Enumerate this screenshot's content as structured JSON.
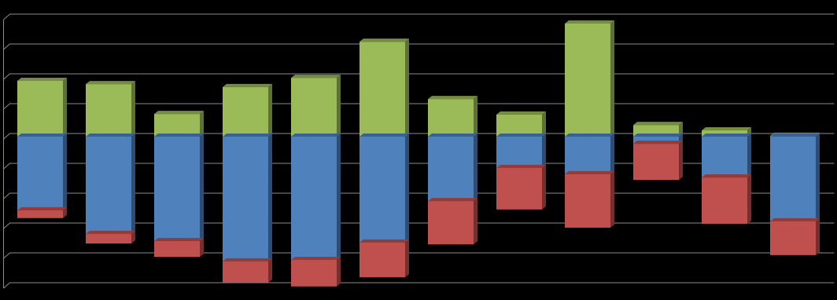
{
  "chart_data": {
    "type": "bar3d-stacked",
    "categories": [
      null,
      null,
      null,
      null,
      null,
      null,
      null,
      null,
      null,
      null,
      null,
      null
    ],
    "series": [
      {
        "color": "#9bbb59",
        "values": [
          1.87,
          1.76,
          0.76,
          1.66,
          1.97,
          3.18,
          1.26,
          0.74,
          3.79,
          0.39,
          0.21,
          0.03
        ]
      },
      {
        "color": "#4f81bd",
        "values": [
          -2.47,
          -3.26,
          -3.5,
          -4.18,
          -4.13,
          -3.55,
          -2.16,
          -1.05,
          -1.26,
          -0.24,
          -1.37,
          -2.84
        ]
      },
      {
        "color": "#c0504d",
        "values": [
          -0.26,
          -0.32,
          -0.53,
          -0.71,
          -0.89,
          -1.16,
          -1.45,
          -1.39,
          -1.79,
          -1.21,
          -1.55,
          -1.13
        ]
      }
    ],
    "ylim": [
      -5,
      4
    ],
    "yticks": [
      -5,
      -4,
      -3,
      -2,
      -1,
      0,
      1,
      2,
      3,
      4
    ],
    "grid": true
  }
}
